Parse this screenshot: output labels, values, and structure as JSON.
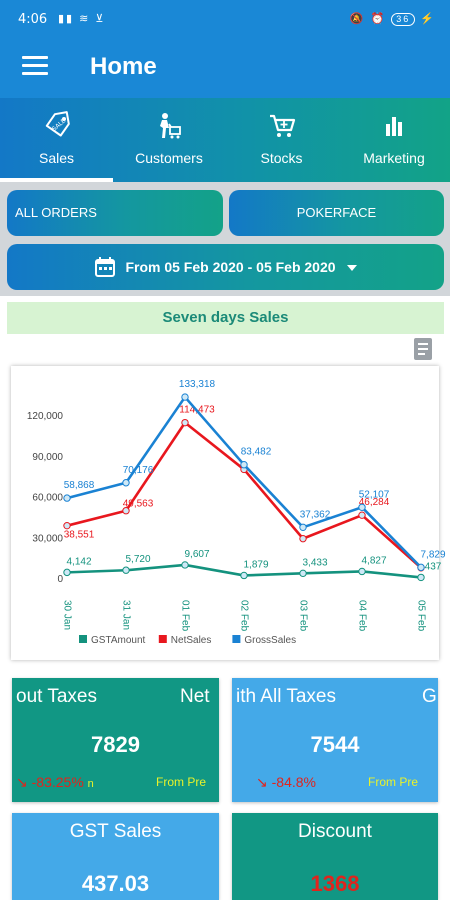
{
  "status_bar": {
    "time": "4:06",
    "left_icons": "▮▮ ≋ ⊻",
    "right_icons": "🔕 ⏰",
    "battery": "36"
  },
  "app_bar": {
    "title": "Home"
  },
  "tabs": [
    {
      "label": "Sales",
      "icon": "tag-icon",
      "active": true
    },
    {
      "label": "Customers",
      "icon": "person-cart-icon",
      "active": false
    },
    {
      "label": "Stocks",
      "icon": "cart-icon",
      "active": false
    },
    {
      "label": "Marketing",
      "icon": "bar-chart-icon",
      "active": false
    }
  ],
  "filters": {
    "all_orders": "ALL ORDERS",
    "pokerface": "POKERFACE",
    "date_range": "From 05 Feb 2020 - 05 Feb 2020"
  },
  "section_title": "Seven days Sales",
  "chart_data": {
    "type": "line",
    "categories": [
      "30 Jan",
      "31 Jan",
      "01 Feb",
      "02 Feb",
      "03 Feb",
      "04 Feb",
      "05 Feb"
    ],
    "y_ticks": [
      "0",
      "30,000",
      "60,000",
      "90,000",
      "120,000"
    ],
    "ylim": [
      0,
      140000
    ],
    "grid": false,
    "legend_position": "bottom",
    "series": [
      {
        "name": "GSTAmount",
        "color": "#14927e",
        "values": [
          4142,
          5720,
          9607,
          1879,
          3433,
          4827,
          437
        ],
        "labels": [
          "4,142",
          "5,720",
          "9,607",
          "1,879",
          "3,433",
          "4,827",
          "437"
        ]
      },
      {
        "name": "NetSales",
        "color": "#e8171e",
        "values": [
          38551,
          49563,
          114473,
          80000,
          29000,
          46284,
          7544
        ],
        "labels": [
          "38,551",
          "49,563",
          "114,473",
          "",
          "",
          "46,284",
          ""
        ]
      },
      {
        "name": "GrossSales",
        "color": "#1a82d3",
        "values": [
          58868,
          70176,
          133318,
          83482,
          37362,
          52107,
          7829
        ],
        "labels": [
          "58,868",
          "70,176",
          "133,318",
          "83,482",
          "37,362",
          "52,107",
          "7,829"
        ]
      }
    ]
  },
  "cards": {
    "a": {
      "title_left": "out Taxes",
      "title_right": "Net",
      "value": "7829",
      "change": "-83.25%",
      "change_suffix": "n",
      "prev": "From Pre"
    },
    "b": {
      "title_left": "ith All Taxes",
      "title_right": "G",
      "value": "7544",
      "change": "-84.8%",
      "prev": "From Pre"
    },
    "c": {
      "title": "GST Sales",
      "value": "437.03"
    },
    "d": {
      "title": "Discount",
      "value": "1368"
    }
  },
  "colors": {
    "app_bar": "#1a88d6",
    "teal": "#119784",
    "blue": "#44a9e8",
    "negative": "#e0241d",
    "prev": "#e9f22a"
  }
}
